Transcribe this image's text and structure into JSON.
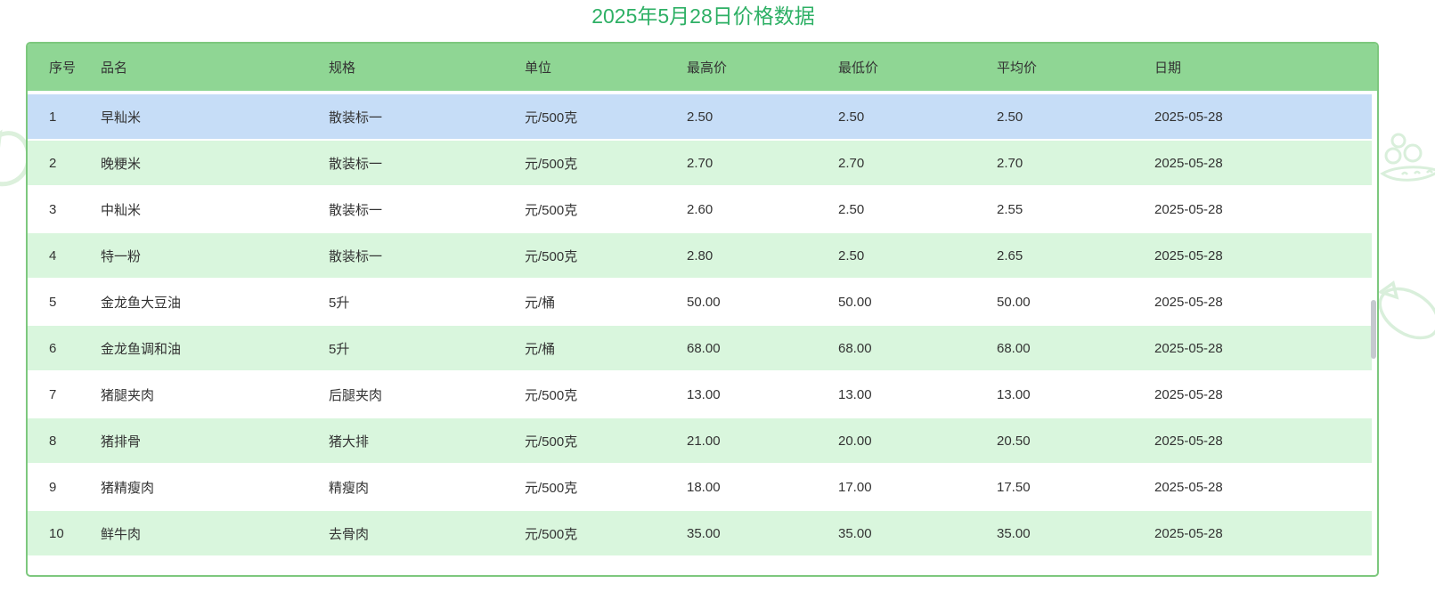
{
  "title": "2025年5月28日价格数据",
  "table": {
    "headers": [
      "序号",
      "品名",
      "规格",
      "单位",
      "最高价",
      "最低价",
      "平均价",
      "日期"
    ],
    "rows": [
      [
        "1",
        "早籼米",
        "散装标一",
        "元/500克",
        "2.50",
        "2.50",
        "2.50",
        "2025-05-28"
      ],
      [
        "2",
        "晚粳米",
        "散装标一",
        "元/500克",
        "2.70",
        "2.70",
        "2.70",
        "2025-05-28"
      ],
      [
        "3",
        "中籼米",
        "散装标一",
        "元/500克",
        "2.60",
        "2.50",
        "2.55",
        "2025-05-28"
      ],
      [
        "4",
        "特一粉",
        "散装标一",
        "元/500克",
        "2.80",
        "2.50",
        "2.65",
        "2025-05-28"
      ],
      [
        "5",
        "金龙鱼大豆油",
        "5升",
        "元/桶",
        "50.00",
        "50.00",
        "50.00",
        "2025-05-28"
      ],
      [
        "6",
        "金龙鱼调和油",
        "5升",
        "元/桶",
        "68.00",
        "68.00",
        "68.00",
        "2025-05-28"
      ],
      [
        "7",
        "猪腿夹肉",
        "后腿夹肉",
        "元/500克",
        "13.00",
        "13.00",
        "13.00",
        "2025-05-28"
      ],
      [
        "8",
        "猪排骨",
        "猪大排",
        "元/500克",
        "21.00",
        "20.00",
        "20.50",
        "2025-05-28"
      ],
      [
        "9",
        "猪精瘦肉",
        "精瘦肉",
        "元/500克",
        "18.00",
        "17.00",
        "17.50",
        "2025-05-28"
      ],
      [
        "10",
        "鲜牛肉",
        "去骨肉",
        "元/500克",
        "35.00",
        "35.00",
        "35.00",
        "2025-05-28"
      ]
    ],
    "highlighted_row_index": 0
  },
  "scrollbar": {
    "visible": true
  },
  "decorations": [
    "leaf-arc-left",
    "pea-pod-top-right",
    "eggplant-right"
  ],
  "colors": {
    "title_green": "#2eb065",
    "header_bg": "#8fd694",
    "row_green": "#d9f6dd",
    "row_white": "#ffffff",
    "row_highlight_blue": "#c6ddf7",
    "border_green": "#7dc87e",
    "text": "#333333",
    "scrollbar_thumb": "#c5c9cf",
    "decoration_green": "#d9efdb"
  }
}
